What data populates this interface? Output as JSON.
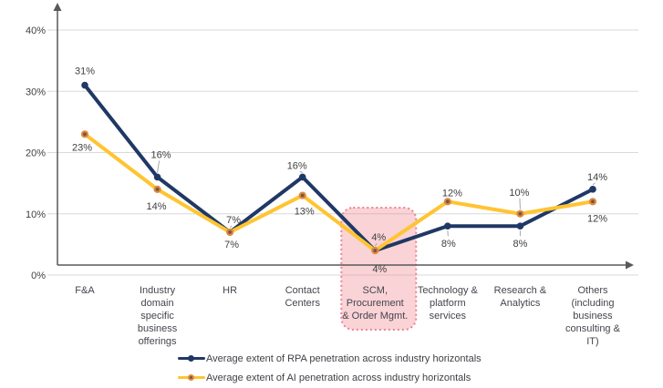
{
  "chart_data": {
    "type": "line",
    "title": "",
    "categories": [
      [
        "F&A"
      ],
      [
        "Industry",
        "domain",
        "specific",
        "business",
        "offerings"
      ],
      [
        "HR"
      ],
      [
        "Contact",
        "Centers"
      ],
      [
        "SCM,",
        "Procurement",
        "& Order Mgmt."
      ],
      [
        "Technology &",
        "platform",
        "services"
      ],
      [
        "Research &",
        "Analytics"
      ],
      [
        "Others",
        "(including",
        "business",
        "consulting &",
        "IT)"
      ]
    ],
    "series": [
      {
        "name": "Average extent of RPA penetration across industry horizontals",
        "color": "#1F3865",
        "values": [
          31,
          16,
          7,
          16,
          4,
          8,
          8,
          14
        ],
        "labels": [
          "31%",
          "16%",
          "7%",
          "16%",
          "4%",
          "8%",
          "8%",
          "14%"
        ],
        "label_dx": [
          0,
          4,
          4,
          -6,
          4,
          1,
          0,
          5
        ],
        "label_dy": [
          -16,
          -25,
          -14,
          -13,
          -15,
          19,
          19,
          -14
        ],
        "leader": [
          false,
          true,
          true,
          true,
          true,
          true,
          true,
          true
        ]
      },
      {
        "name": "Average extent of AI penetration across industry horizontals",
        "color": "#FFC431",
        "marker_ring": "#E2883C",
        "marker_core": "#6B584E",
        "values": [
          23,
          14,
          7,
          13,
          4,
          12,
          10,
          12
        ],
        "labels": [
          "23%",
          "14%",
          "7%",
          "13%",
          "4%",
          "12%",
          "10%",
          "12%"
        ],
        "label_dx": [
          -3,
          -1,
          2,
          2,
          5,
          5,
          -1,
          5
        ],
        "label_dy": [
          14,
          18,
          13,
          17,
          20,
          -10,
          -24,
          18
        ],
        "leader": [
          false,
          false,
          false,
          false,
          false,
          false,
          true,
          false
        ]
      }
    ],
    "y_ticks": [
      "40%",
      "30%",
      "20%",
      "10%",
      "0%"
    ],
    "y_tick_values": [
      40,
      30,
      20,
      10,
      0
    ],
    "ylim": [
      0,
      45
    ],
    "grid": "horizontal",
    "legend_position": "bottom",
    "highlight": {
      "category_index": 4,
      "category_label": "SCM, Procurement & Order Mgmt.",
      "fill": "rgba(236,109,119,0.30)",
      "border": "#EE8391"
    },
    "colors": {
      "axis": "#595959",
      "grid": "#D9D9D9",
      "leader": "#A6A6A6",
      "label_text": "#404040",
      "category_text": "#45454E"
    }
  }
}
